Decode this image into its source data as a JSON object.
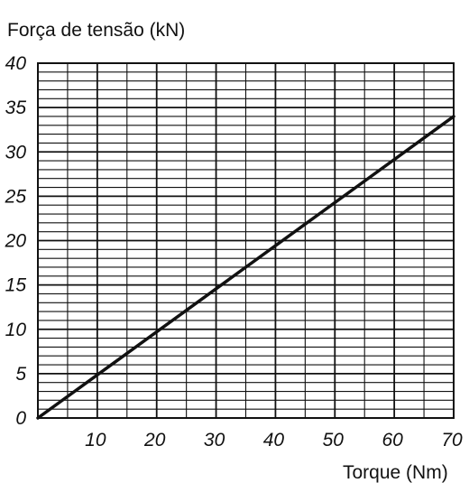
{
  "chart_data": {
    "type": "line",
    "title": "",
    "ylabel": "Força de tensão (kN)",
    "xlabel": "Torque (Nm)",
    "xlim": [
      0,
      70
    ],
    "ylim": [
      0,
      40
    ],
    "x_ticks": [
      10,
      20,
      30,
      40,
      50,
      60,
      70
    ],
    "y_ticks": [
      0,
      5,
      10,
      15,
      20,
      25,
      30,
      35,
      40
    ],
    "x_minor_step": 5,
    "y_minor_step": 1,
    "grid": true,
    "legend": "none",
    "series": [
      {
        "x": [
          0,
          70
        ],
        "y": [
          0,
          34
        ]
      }
    ],
    "colors": {
      "line": "#111111",
      "grid": "#111111",
      "background": "#ffffff"
    }
  }
}
